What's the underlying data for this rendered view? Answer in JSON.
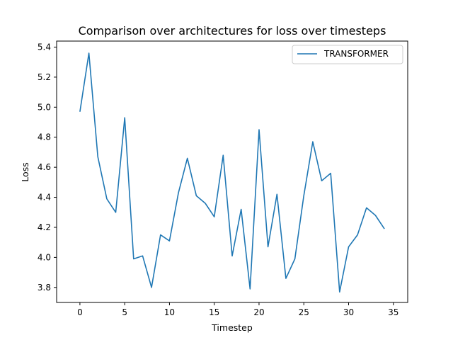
{
  "chart_data": {
    "type": "line",
    "title": "Comparison over architectures for loss over timesteps",
    "xlabel": "Timestep",
    "ylabel": "Loss",
    "xlim": [
      -2.6,
      36.6
    ],
    "ylim": [
      3.7,
      5.44
    ],
    "xticks": [
      0,
      5,
      10,
      15,
      20,
      25,
      30,
      35
    ],
    "xtick_labels": [
      "0",
      "5",
      "10",
      "15",
      "20",
      "25",
      "30",
      "35"
    ],
    "yticks": [
      3.8,
      4.0,
      4.2,
      4.4,
      4.6,
      4.8,
      5.0,
      5.2,
      5.4
    ],
    "ytick_labels": [
      "3.8",
      "4.0",
      "4.2",
      "4.4",
      "4.6",
      "4.8",
      "5.0",
      "5.2",
      "5.4"
    ],
    "grid": false,
    "legend_position": "top-right",
    "series": [
      {
        "name": "TRANSFORMER",
        "color": "#1f77b4",
        "x": [
          0,
          1,
          2,
          3,
          4,
          5,
          6,
          7,
          8,
          9,
          10,
          11,
          12,
          13,
          14,
          15,
          16,
          17,
          18,
          19,
          20,
          21,
          22,
          23,
          24,
          25,
          26,
          27,
          28,
          29,
          30,
          31,
          32,
          33,
          34
        ],
        "values": [
          4.97,
          5.36,
          4.67,
          4.39,
          4.3,
          4.93,
          3.99,
          4.01,
          3.8,
          4.15,
          4.11,
          4.43,
          4.66,
          4.41,
          4.36,
          4.27,
          4.68,
          4.01,
          4.32,
          3.79,
          4.85,
          4.07,
          4.42,
          3.86,
          3.99,
          4.41,
          4.77,
          4.51,
          4.56,
          3.77,
          4.07,
          4.15,
          4.33,
          4.28,
          4.19
        ]
      }
    ]
  }
}
